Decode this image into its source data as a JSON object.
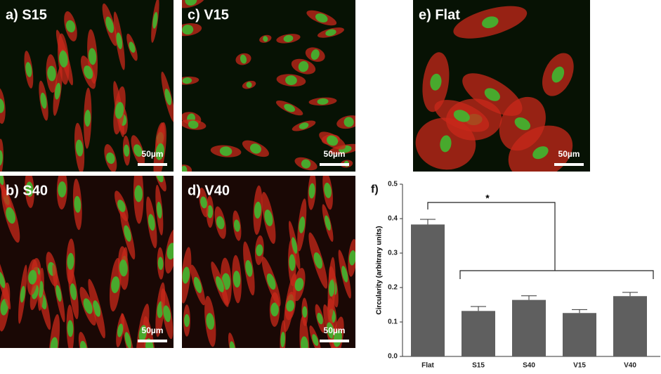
{
  "panels": [
    {
      "label": "a) S15",
      "scale_bar": "50µm"
    },
    {
      "label": "b) S40",
      "scale_bar": "50µm"
    },
    {
      "label": "c) V15",
      "scale_bar": "50µm"
    },
    {
      "label": "d) V40",
      "scale_bar": "50µm"
    },
    {
      "label": "e) Flat",
      "scale_bar": "50µm"
    }
  ],
  "chart_data": {
    "type": "bar",
    "panel_label": "f)",
    "y_label": "Circularity (arbitrary units)",
    "categories": [
      "Flat",
      "S15",
      "S40",
      "V15",
      "V40"
    ],
    "values": [
      0.383,
      0.132,
      0.164,
      0.126,
      0.175
    ],
    "errors": [
      0.015,
      0.013,
      0.012,
      0.01,
      0.011
    ],
    "color": "#5f5f5f",
    "ylim": [
      0,
      0.5
    ],
    "yticks": [
      {
        "value": 0,
        "label": "0.0"
      },
      0.1,
      0.2,
      0.3,
      0.4,
      0.5
    ],
    "annotation": "*"
  }
}
